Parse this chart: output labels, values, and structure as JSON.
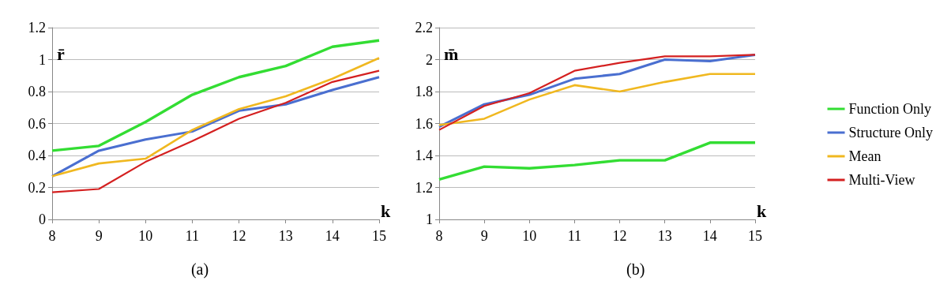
{
  "chart_data": [
    {
      "type": "line",
      "title": "(a)",
      "xlabel": "k",
      "ylabel": "r̄",
      "x": [
        8,
        9,
        10,
        11,
        12,
        13,
        14,
        15
      ],
      "xlim": [
        8,
        15
      ],
      "xticks": [
        8,
        9,
        10,
        11,
        12,
        13,
        14,
        15
      ],
      "ylim": [
        0,
        1.2
      ],
      "yticks": [
        0,
        0.2,
        0.4,
        0.6,
        0.8,
        1,
        1.2
      ],
      "grid": "y",
      "legend": false,
      "marker": "none",
      "line_style": "solid",
      "series": [
        {
          "color": "#33dd33",
          "values": [
            0.43,
            0.46,
            0.61,
            0.78,
            0.89,
            0.96,
            1.08,
            1.12
          ]
        },
        {
          "color": "#4a6fd0",
          "values": [
            0.27,
            0.43,
            0.5,
            0.55,
            0.68,
            0.72,
            0.81,
            0.89
          ]
        },
        {
          "color": "#f0b820",
          "values": [
            0.27,
            0.35,
            0.38,
            0.56,
            0.69,
            0.77,
            0.88,
            1.01
          ]
        },
        {
          "color": "#d42020",
          "values": [
            0.17,
            0.19,
            0.36,
            0.49,
            0.63,
            0.73,
            0.86,
            0.93
          ]
        }
      ]
    },
    {
      "type": "line",
      "title": "(b)",
      "xlabel": "k",
      "ylabel": "m̄",
      "x": [
        8,
        9,
        10,
        11,
        12,
        13,
        14,
        15
      ],
      "xlim": [
        8,
        15
      ],
      "xticks": [
        8,
        9,
        10,
        11,
        12,
        13,
        14,
        15
      ],
      "ylim": [
        1,
        2.2
      ],
      "yticks": [
        1,
        1.2,
        1.4,
        1.6,
        1.8,
        2,
        2.2
      ],
      "grid": "y",
      "legend": "right",
      "marker": "none",
      "line_style": "solid",
      "series": [
        {
          "name": "Function Only",
          "color": "#33dd33",
          "values": [
            1.25,
            1.33,
            1.32,
            1.34,
            1.37,
            1.37,
            1.48,
            1.48
          ]
        },
        {
          "name": "Structure Only",
          "color": "#4a6fd0",
          "values": [
            1.58,
            1.72,
            1.78,
            1.88,
            1.91,
            2.0,
            1.99,
            2.03
          ]
        },
        {
          "name": "Mean",
          "color": "#f0b820",
          "values": [
            1.59,
            1.63,
            1.75,
            1.84,
            1.8,
            1.86,
            1.91,
            1.91
          ]
        },
        {
          "name": "Multi-View",
          "color": "#d42020",
          "values": [
            1.56,
            1.71,
            1.79,
            1.93,
            1.98,
            2.02,
            2.02,
            2.03
          ]
        }
      ]
    }
  ]
}
